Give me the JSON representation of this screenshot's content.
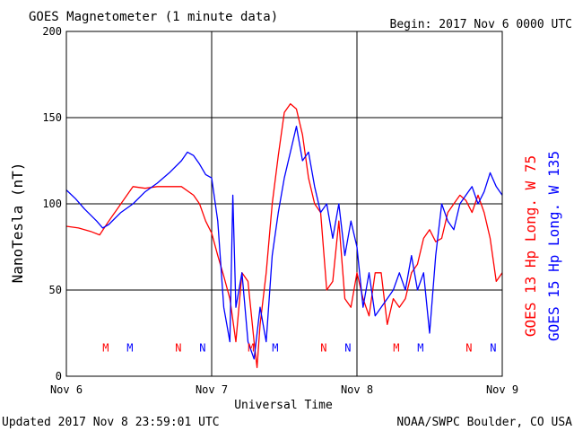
{
  "header": {
    "title": "GOES Magnetometer (1 minute data)",
    "begin": "Begin:  2017 Nov 6 0000 UTC"
  },
  "footer": {
    "updated": "Updated 2017 Nov  8 23:59:01 UTC",
    "credit": "NOAA/SWPC Boulder, CO USA"
  },
  "colors": {
    "goes13": "#ff0000",
    "goes15": "#0000ff",
    "axis": "#000000",
    "background": "#ffffff"
  },
  "chart_data": {
    "type": "line",
    "title": "GOES Magnetometer (1 minute data)",
    "xlabel": "Universal Time",
    "ylabel": "NanoTesla (nT)",
    "x_unit": "hours since 2017 Nov 6 0000 UTC",
    "xlim": [
      0,
      72
    ],
    "ylim": [
      0,
      200
    ],
    "x_ticks": [
      {
        "x": 0,
        "label": "Nov 6"
      },
      {
        "x": 24,
        "label": "Nov 7"
      },
      {
        "x": 48,
        "label": "Nov 8"
      },
      {
        "x": 72,
        "label": "Nov 9"
      }
    ],
    "y_ticks": [
      0,
      50,
      100,
      150,
      200
    ],
    "grid": true,
    "series": [
      {
        "name": "GOES 13 Hp  Long. W 75",
        "color": "#ff0000",
        "x": [
          0,
          2,
          4,
          5.5,
          7,
          9,
          11,
          13,
          15,
          17,
          19,
          21,
          22,
          23,
          24,
          25,
          26,
          27,
          28,
          29,
          30,
          31,
          31.5,
          32,
          33,
          34,
          35,
          36,
          37,
          38,
          39,
          40,
          41,
          42,
          43,
          44,
          45,
          46,
          47,
          48,
          49,
          50,
          51,
          52,
          53,
          54,
          55,
          56,
          57,
          58,
          59,
          60,
          61,
          62,
          63,
          64,
          65,
          66,
          67,
          68,
          69,
          70,
          71,
          72
        ],
        "y": [
          87,
          86,
          84,
          82,
          90,
          100,
          110,
          109,
          110,
          110,
          110,
          105,
          100,
          90,
          83,
          70,
          58,
          45,
          20,
          60,
          55,
          20,
          5,
          30,
          60,
          100,
          128,
          153,
          158,
          155,
          140,
          115,
          100,
          95,
          50,
          55,
          90,
          45,
          40,
          60,
          45,
          35,
          60,
          60,
          30,
          45,
          40,
          45,
          60,
          65,
          80,
          85,
          78,
          80,
          95,
          100,
          105,
          102,
          95,
          105,
          95,
          80,
          55,
          60
        ]
      },
      {
        "name": "GOES 15 Hp  Long. W 135",
        "color": "#0000ff",
        "x": [
          0,
          1.5,
          3,
          5,
          6,
          7,
          9,
          11,
          13,
          15,
          17,
          19,
          20,
          21,
          22,
          23,
          24,
          25,
          26,
          27,
          27.5,
          28,
          29,
          30,
          31,
          32,
          33,
          34,
          35,
          36,
          37,
          38,
          39,
          40,
          41,
          42,
          43,
          44,
          45,
          46,
          47,
          48,
          49,
          50,
          51,
          52,
          53,
          54,
          55,
          56,
          57,
          58,
          59,
          60,
          61,
          62,
          63,
          64,
          65,
          66,
          67,
          68,
          69,
          70,
          71,
          72
        ],
        "y": [
          108,
          103,
          97,
          90,
          86,
          88,
          95,
          100,
          107,
          112,
          118,
          125,
          130,
          128,
          123,
          117,
          115,
          90,
          40,
          20,
          105,
          40,
          60,
          20,
          10,
          40,
          20,
          70,
          95,
          115,
          130,
          145,
          125,
          130,
          110,
          95,
          100,
          80,
          100,
          70,
          90,
          75,
          40,
          60,
          35,
          40,
          45,
          50,
          60,
          50,
          70,
          50,
          60,
          25,
          70,
          100,
          90,
          85,
          100,
          105,
          110,
          100,
          107,
          118,
          110,
          105
        ]
      }
    ],
    "markers": [
      {
        "x": 6.5,
        "label": "M",
        "series": "GOES 13 Hp  Long. W 75"
      },
      {
        "x": 10.5,
        "label": "M",
        "series": "GOES 15 Hp  Long. W 135"
      },
      {
        "x": 18.5,
        "label": "N",
        "series": "GOES 13 Hp  Long. W 75"
      },
      {
        "x": 22.5,
        "label": "N",
        "series": "GOES 15 Hp  Long. W 135"
      },
      {
        "x": 30.5,
        "label": "M",
        "series": "GOES 13 Hp  Long. W 75"
      },
      {
        "x": 34.5,
        "label": "M",
        "series": "GOES 15 Hp  Long. W 135"
      },
      {
        "x": 42.5,
        "label": "N",
        "series": "GOES 13 Hp  Long. W 75"
      },
      {
        "x": 46.5,
        "label": "N",
        "series": "GOES 15 Hp  Long. W 135"
      },
      {
        "x": 54.5,
        "label": "M",
        "series": "GOES 13 Hp  Long. W 75"
      },
      {
        "x": 58.5,
        "label": "M",
        "series": "GOES 15 Hp  Long. W 135"
      },
      {
        "x": 66.5,
        "label": "N",
        "series": "GOES 13 Hp  Long. W 75"
      },
      {
        "x": 70.5,
        "label": "N",
        "series": "GOES 15 Hp  Long. W 135"
      }
    ],
    "marker_level": 17
  }
}
